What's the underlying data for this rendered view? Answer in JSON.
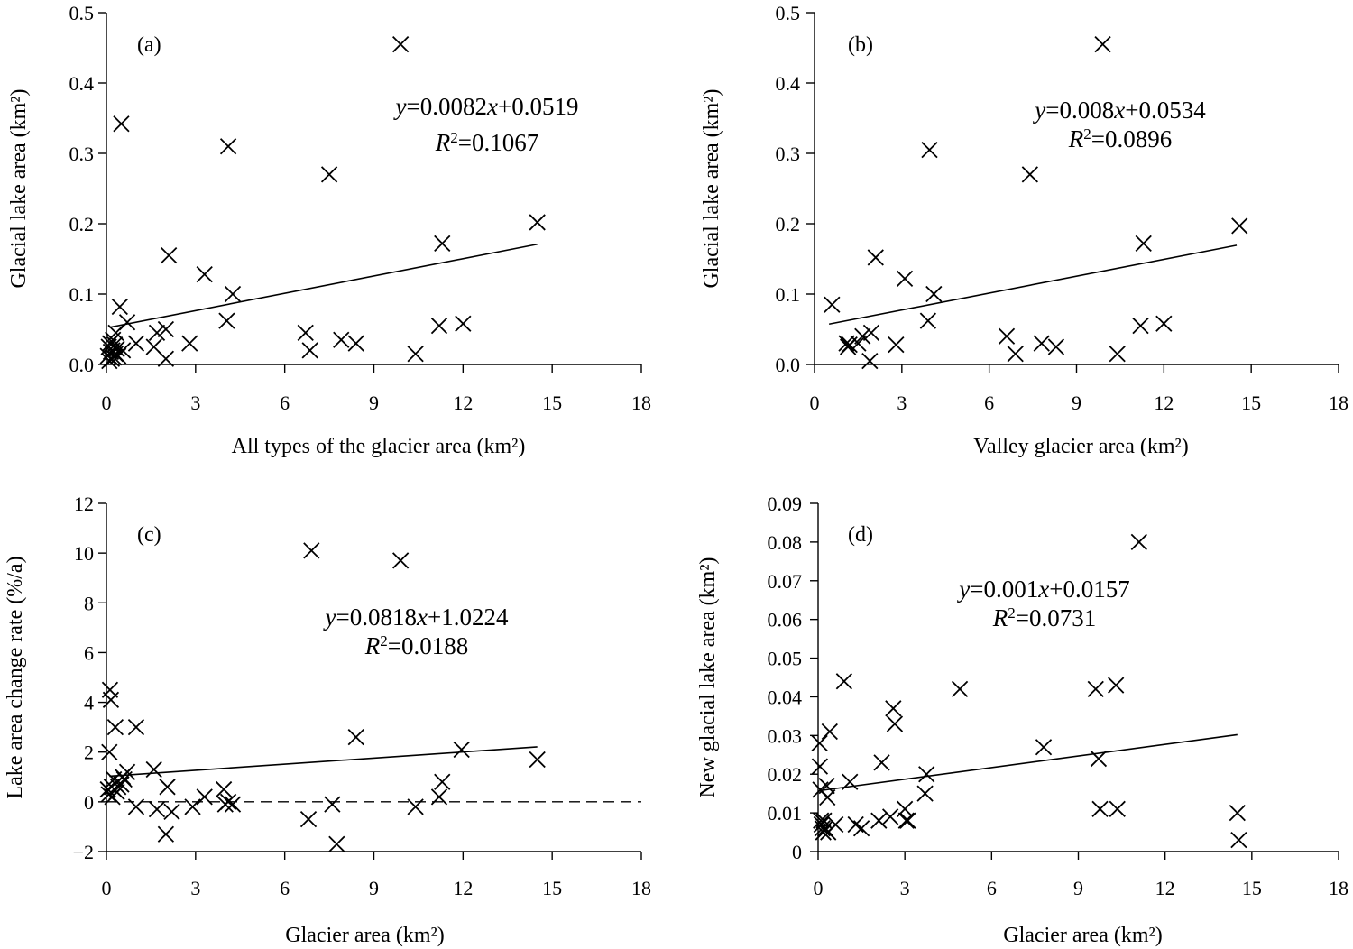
{
  "chart_data": [
    {
      "type": "scatter",
      "panel_label": "(a)",
      "xlabel": "All types of the glacier area (km²)",
      "ylabel": "Glacial lake area (km²)",
      "xlim": [
        0,
        18
      ],
      "ylim": [
        0,
        0.5
      ],
      "xticks": [
        "0",
        "3",
        "6",
        "9",
        "12",
        "15",
        "18"
      ],
      "yticks": [
        "0.0",
        "0.1",
        "0.2",
        "0.3",
        "0.4",
        "0.5"
      ],
      "equation": {
        "y": "y",
        "coef": "=0.0082",
        "x": "x",
        "rest": "+0.0519"
      },
      "r2": {
        "r": "R",
        "sup": "2",
        "val": "=0.1067"
      },
      "trendline": {
        "x_start": 0.1,
        "x_end": 14.5,
        "slope": 0.0082,
        "intercept": 0.0519
      },
      "zero_line": false,
      "points": [
        [
          0.05,
          0.012
        ],
        [
          0.08,
          0.025
        ],
        [
          0.1,
          0.005
        ],
        [
          0.12,
          0.03
        ],
        [
          0.15,
          0.018
        ],
        [
          0.18,
          0.008
        ],
        [
          0.2,
          0.02
        ],
        [
          0.22,
          0.035
        ],
        [
          0.25,
          0.01
        ],
        [
          0.28,
          0.028
        ],
        [
          0.3,
          0.015
        ],
        [
          0.32,
          0.045
        ],
        [
          0.35,
          0.022
        ],
        [
          0.4,
          0.012
        ],
        [
          0.45,
          0.082
        ],
        [
          0.5,
          0.342
        ],
        [
          0.55,
          0.02
        ],
        [
          0.7,
          0.06
        ],
        [
          1.0,
          0.03
        ],
        [
          1.6,
          0.025
        ],
        [
          1.7,
          0.045
        ],
        [
          2.0,
          0.008
        ],
        [
          2.0,
          0.05
        ],
        [
          2.1,
          0.155
        ],
        [
          2.8,
          0.03
        ],
        [
          3.3,
          0.128
        ],
        [
          4.05,
          0.062
        ],
        [
          4.1,
          0.31
        ],
        [
          4.25,
          0.1
        ],
        [
          6.7,
          0.045
        ],
        [
          6.85,
          0.02
        ],
        [
          7.5,
          0.27
        ],
        [
          7.9,
          0.035
        ],
        [
          8.4,
          0.03
        ],
        [
          9.9,
          0.455
        ],
        [
          10.4,
          0.015
        ],
        [
          11.2,
          0.055
        ],
        [
          11.3,
          0.172
        ],
        [
          12.0,
          0.058
        ],
        [
          14.5,
          0.202
        ]
      ]
    },
    {
      "type": "scatter",
      "panel_label": "(b)",
      "xlabel": "Valley glacier area (km²)",
      "ylabel": "Glacial lake area (km²)",
      "xlim": [
        0,
        18
      ],
      "ylim": [
        0,
        0.5
      ],
      "xticks": [
        "0",
        "3",
        "6",
        "9",
        "12",
        "15",
        "18"
      ],
      "yticks": [
        "0.0",
        "0.1",
        "0.2",
        "0.3",
        "0.4",
        "0.5"
      ],
      "equation": {
        "y": "y",
        "coef": "=0.008",
        "x": "x",
        "rest": "+0.0534"
      },
      "r2": {
        "r": "R",
        "sup": "2",
        "val": "=0.0896"
      },
      "trendline": {
        "x_start": 0.5,
        "x_end": 14.5,
        "slope": 0.008,
        "intercept": 0.0534
      },
      "zero_line": false,
      "points": [
        [
          0.6,
          0.085
        ],
        [
          1.1,
          0.03
        ],
        [
          1.15,
          0.025
        ],
        [
          1.2,
          0.028
        ],
        [
          1.5,
          0.03
        ],
        [
          1.65,
          0.04
        ],
        [
          1.9,
          0.005
        ],
        [
          1.95,
          0.045
        ],
        [
          2.1,
          0.152
        ],
        [
          2.8,
          0.028
        ],
        [
          3.1,
          0.122
        ],
        [
          3.9,
          0.062
        ],
        [
          3.95,
          0.305
        ],
        [
          4.1,
          0.1
        ],
        [
          6.6,
          0.04
        ],
        [
          6.9,
          0.015
        ],
        [
          7.4,
          0.27
        ],
        [
          7.8,
          0.03
        ],
        [
          8.3,
          0.025
        ],
        [
          9.9,
          0.455
        ],
        [
          10.4,
          0.015
        ],
        [
          11.2,
          0.055
        ],
        [
          11.3,
          0.172
        ],
        [
          12.0,
          0.058
        ],
        [
          14.6,
          0.197
        ]
      ]
    },
    {
      "type": "scatter",
      "panel_label": "(c)",
      "xlabel": "Glacier area (km²)",
      "ylabel": "Lake area change rate (%/a)",
      "xlim": [
        0,
        18
      ],
      "ylim": [
        -2,
        12
      ],
      "xticks": [
        "0",
        "3",
        "6",
        "9",
        "12",
        "15",
        "18"
      ],
      "yticks": [
        "−2",
        "0",
        "2",
        "4",
        "6",
        "8",
        "10",
        "12"
      ],
      "equation": {
        "y": "y",
        "coef": "=0.0818",
        "x": "x",
        "rest": "+1.0224"
      },
      "r2": {
        "r": "R",
        "sup": "2",
        "val": "=0.0188"
      },
      "trendline": {
        "x_start": 0.1,
        "x_end": 14.5,
        "slope": 0.0818,
        "intercept": 1.0224
      },
      "zero_line": true,
      "points": [
        [
          0.05,
          0.5
        ],
        [
          0.08,
          0.3
        ],
        [
          0.1,
          2.0
        ],
        [
          0.12,
          4.5
        ],
        [
          0.15,
          4.1
        ],
        [
          0.18,
          0.6
        ],
        [
          0.2,
          0.2
        ],
        [
          0.25,
          0.9
        ],
        [
          0.3,
          3.0
        ],
        [
          0.35,
          0.4
        ],
        [
          0.4,
          0.6
        ],
        [
          0.5,
          0.7
        ],
        [
          0.55,
          1.0
        ],
        [
          0.6,
          0.9
        ],
        [
          0.7,
          1.2
        ],
        [
          1.0,
          3.0
        ],
        [
          1.0,
          -0.2
        ],
        [
          1.6,
          1.3
        ],
        [
          1.7,
          -0.3
        ],
        [
          2.0,
          -1.3
        ],
        [
          2.05,
          0.6
        ],
        [
          2.2,
          -0.4
        ],
        [
          2.9,
          -0.2
        ],
        [
          3.3,
          0.2
        ],
        [
          3.95,
          0.5
        ],
        [
          4.0,
          -0.1
        ],
        [
          4.1,
          0.0
        ],
        [
          4.25,
          -0.1
        ],
        [
          6.8,
          -0.7
        ],
        [
          6.9,
          10.1
        ],
        [
          7.6,
          -0.1
        ],
        [
          7.75,
          -1.7
        ],
        [
          8.4,
          2.6
        ],
        [
          9.9,
          9.7
        ],
        [
          10.4,
          -0.2
        ],
        [
          11.2,
          0.2
        ],
        [
          11.3,
          0.8
        ],
        [
          11.95,
          2.1
        ],
        [
          14.5,
          1.7
        ]
      ]
    },
    {
      "type": "scatter",
      "panel_label": "(d)",
      "xlabel": "Glacier area (km²)",
      "ylabel": "New glacial lake area (km²)",
      "xlim": [
        0,
        18
      ],
      "ylim": [
        0,
        0.09
      ],
      "xticks": [
        "0",
        "3",
        "6",
        "9",
        "12",
        "15",
        "18"
      ],
      "yticks": [
        "0",
        "0.01",
        "0.02",
        "0.03",
        "0.04",
        "0.05",
        "0.06",
        "0.07",
        "0.08",
        "0.09"
      ],
      "equation": {
        "y": "y",
        "coef": "=0.001",
        "x": "x",
        "rest": "+0.0157"
      },
      "r2": {
        "r": "R",
        "sup": "2",
        "val": "=0.0731"
      },
      "trendline": {
        "x_start": 0.1,
        "x_end": 14.5,
        "slope": 0.001,
        "intercept": 0.0157
      },
      "zero_line": false,
      "points": [
        [
          0.05,
          0.028
        ],
        [
          0.06,
          0.022
        ],
        [
          0.08,
          0.016
        ],
        [
          0.1,
          0.008
        ],
        [
          0.12,
          0.007
        ],
        [
          0.15,
          0.006
        ],
        [
          0.18,
          0.005
        ],
        [
          0.2,
          0.008
        ],
        [
          0.25,
          0.006
        ],
        [
          0.3,
          0.017
        ],
        [
          0.32,
          0.014
        ],
        [
          0.35,
          0.005
        ],
        [
          0.4,
          0.031
        ],
        [
          0.6,
          0.007
        ],
        [
          0.9,
          0.044
        ],
        [
          1.1,
          0.018
        ],
        [
          1.3,
          0.007
        ],
        [
          1.5,
          0.006
        ],
        [
          2.1,
          0.008
        ],
        [
          2.2,
          0.023
        ],
        [
          2.5,
          0.009
        ],
        [
          2.6,
          0.037
        ],
        [
          2.65,
          0.033
        ],
        [
          3.0,
          0.011
        ],
        [
          3.05,
          0.008
        ],
        [
          3.1,
          0.008
        ],
        [
          3.7,
          0.015
        ],
        [
          3.75,
          0.02
        ],
        [
          4.9,
          0.042
        ],
        [
          7.8,
          0.027
        ],
        [
          9.6,
          0.042
        ],
        [
          9.7,
          0.024
        ],
        [
          9.75,
          0.011
        ],
        [
          10.3,
          0.043
        ],
        [
          10.35,
          0.011
        ],
        [
          11.1,
          0.08
        ],
        [
          14.5,
          0.01
        ],
        [
          14.55,
          0.003
        ]
      ]
    }
  ]
}
